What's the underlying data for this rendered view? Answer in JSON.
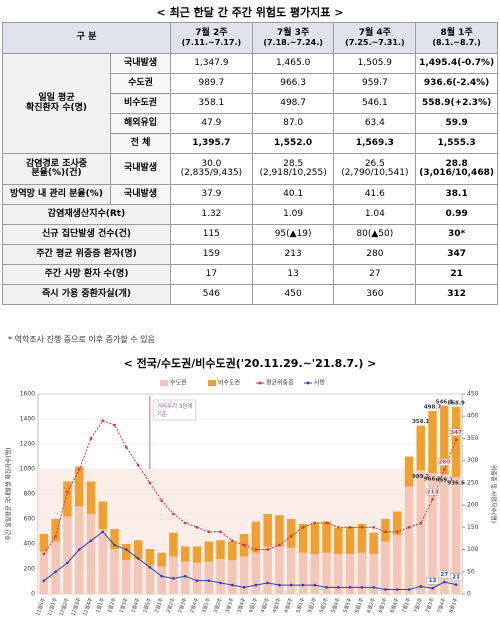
{
  "table": {
    "title": "< 최근 한달 간 주간 위험도 평가지표 >",
    "header": [
      "구 분",
      "7월 2주",
      "7월 3주",
      "7월 4주",
      "8월 1주"
    ],
    "header_dates": [
      "(7.11.~7.17.)",
      "(7.18.~7.24.)",
      "(7.25.~7.31.)",
      "(8.1.~8.7.)"
    ],
    "groups": [
      {
        "label": "일일 평균\n확진환자 수(명)",
        "rows": [
          {
            "item": "국내발생",
            "cells": [
              "1,347.9",
              "1,465.0",
              "1,505.9",
              "1,495.4(-0.7%)"
            ]
          },
          {
            "item": "수도권",
            "cells": [
              "989.7",
              "966.3",
              "959.7",
              "936.6(-2.4%)"
            ]
          },
          {
            "item": "비수도권",
            "cells": [
              "358.1",
              "498.7",
              "546.1",
              "558.9(+2.3%)"
            ]
          },
          {
            "item": "해외유입",
            "cells": [
              "47.9",
              "87.0",
              "63.4",
              "59.9"
            ]
          },
          {
            "item": "전 체",
            "cells": [
              "1,395.7",
              "1,552.0",
              "1,569.3",
              "1,555.3"
            ]
          }
        ]
      },
      {
        "label": "감염경로 조사중\n분율(%)(건)",
        "rows": [
          {
            "item": "국내발생",
            "cells": [
              "30.0\n(2,835/9,435)",
              "28.5\n(2,918/10,255)",
              "26.5\n(2,790/10,541)",
              "28.8\n(3,016/10,468)"
            ]
          }
        ]
      },
      {
        "label": "방역망 내 관리 분율(%)",
        "rows": [
          {
            "item": "국내발생",
            "cells": [
              "37.9",
              "40.1",
              "41.6",
              "38.1"
            ]
          }
        ]
      },
      {
        "label": "감염재생산지수(Rt)",
        "rows": [
          {
            "cells": [
              "1.32",
              "1.09",
              "1.04",
              "0.99"
            ]
          }
        ]
      },
      {
        "label": "신규 집단발생 건수(건)",
        "rows": [
          {
            "cells": [
              "115",
              "95(▲19)",
              "80(▲50)",
              "30*"
            ]
          }
        ]
      },
      {
        "label": "주간 평균 위중증 환자(명)",
        "rows": [
          {
            "cells": [
              "159",
              "213",
              "280",
              "347"
            ]
          }
        ]
      },
      {
        "label": "주간 사망 환자 수(명)",
        "rows": [
          {
            "cells": [
              "17",
              "13",
              "27",
              "21"
            ]
          }
        ]
      },
      {
        "label": "즉시 가용 중환자실(개)",
        "rows": [
          {
            "cells": [
              "546",
              "450",
              "360",
              "312"
            ]
          }
        ]
      }
    ],
    "footnote": "* 역학조사 진행 중으로 이후 증가할 수 있음"
  },
  "chart_data": {
    "type": "stacked-bar-line",
    "title": "< 전국/수도권/비수도권('20.11.29.~'21.8.7.) >",
    "y_label": "주간 일일평균 국내발생 확진자수(명)",
    "y2_label": "위중증 및 사망자수(명)",
    "categories": [
      "11월5주",
      "12월1주",
      "12월2주",
      "12월3주",
      "12월4주",
      "1월1주",
      "1월2주",
      "1월3주",
      "1월4주",
      "1월5주",
      "2월1주",
      "2월2주",
      "2월3주",
      "2월4주",
      "3월1주",
      "3월2주",
      "3월3주",
      "3월4주",
      "4월1주",
      "4월2주",
      "4월3주",
      "4월4주",
      "5월1주",
      "5월2주",
      "5월3주",
      "5월4주",
      "5월5주",
      "6월1주",
      "6월2주",
      "6월3주",
      "6월4주",
      "7월1주",
      "7월2주",
      "7월3주",
      "7월4주",
      "8월1주"
    ],
    "series": [
      {
        "name": "수도권",
        "color": "#f4c6b8",
        "kind": "bar",
        "values": [
          340,
          420,
          620,
          700,
          640,
          520,
          360,
          270,
          280,
          230,
          220,
          300,
          260,
          250,
          260,
          280,
          270,
          300,
          330,
          380,
          380,
          370,
          330,
          320,
          330,
          320,
          320,
          330,
          320,
          420,
          470,
          860,
          989.7,
          966.3,
          959.7,
          936.6
        ]
      },
      {
        "name": "비수도권",
        "color": "#f0a030",
        "kind": "bar",
        "values": [
          140,
          180,
          280,
          320,
          260,
          220,
          160,
          130,
          150,
          130,
          110,
          190,
          120,
          130,
          160,
          150,
          150,
          180,
          250,
          260,
          250,
          230,
          230,
          250,
          250,
          210,
          220,
          230,
          170,
          180,
          190,
          240,
          358.1,
          498.7,
          546.1,
          558.9
        ]
      },
      {
        "name": "평균위중증",
        "color": "#e03030",
        "kind": "line",
        "axis": "y2",
        "dashed": true,
        "values": [
          90,
          130,
          230,
          280,
          350,
          390,
          380,
          330,
          290,
          250,
          210,
          180,
          160,
          150,
          140,
          140,
          120,
          110,
          100,
          100,
          110,
          130,
          150,
          160,
          160,
          150,
          150,
          150,
          150,
          140,
          140,
          150,
          159,
          213,
          280,
          347
        ]
      },
      {
        "name": "사망",
        "color": "#2a3fbf",
        "kind": "line",
        "axis": "y2",
        "values": [
          30,
          50,
          70,
          100,
          120,
          140,
          110,
          100,
          80,
          60,
          40,
          35,
          40,
          30,
          30,
          25,
          20,
          15,
          20,
          25,
          20,
          20,
          20,
          20,
          15,
          15,
          15,
          15,
          15,
          10,
          10,
          10,
          17,
          13,
          27,
          21
        ]
      }
    ],
    "ylim": [
      0,
      1600
    ],
    "yticks": [
      0,
      200,
      400,
      600,
      800,
      1000,
      1200,
      1400,
      1600
    ],
    "y2lim": [
      0,
      450
    ],
    "y2ticks": [
      0,
      50,
      100,
      150,
      200,
      250,
      300,
      350,
      400,
      450
    ],
    "reference_line": 1000,
    "annotation": {
      "text": "거리두기 3단계\n기준",
      "category": 9
    },
    "legend": "top"
  }
}
